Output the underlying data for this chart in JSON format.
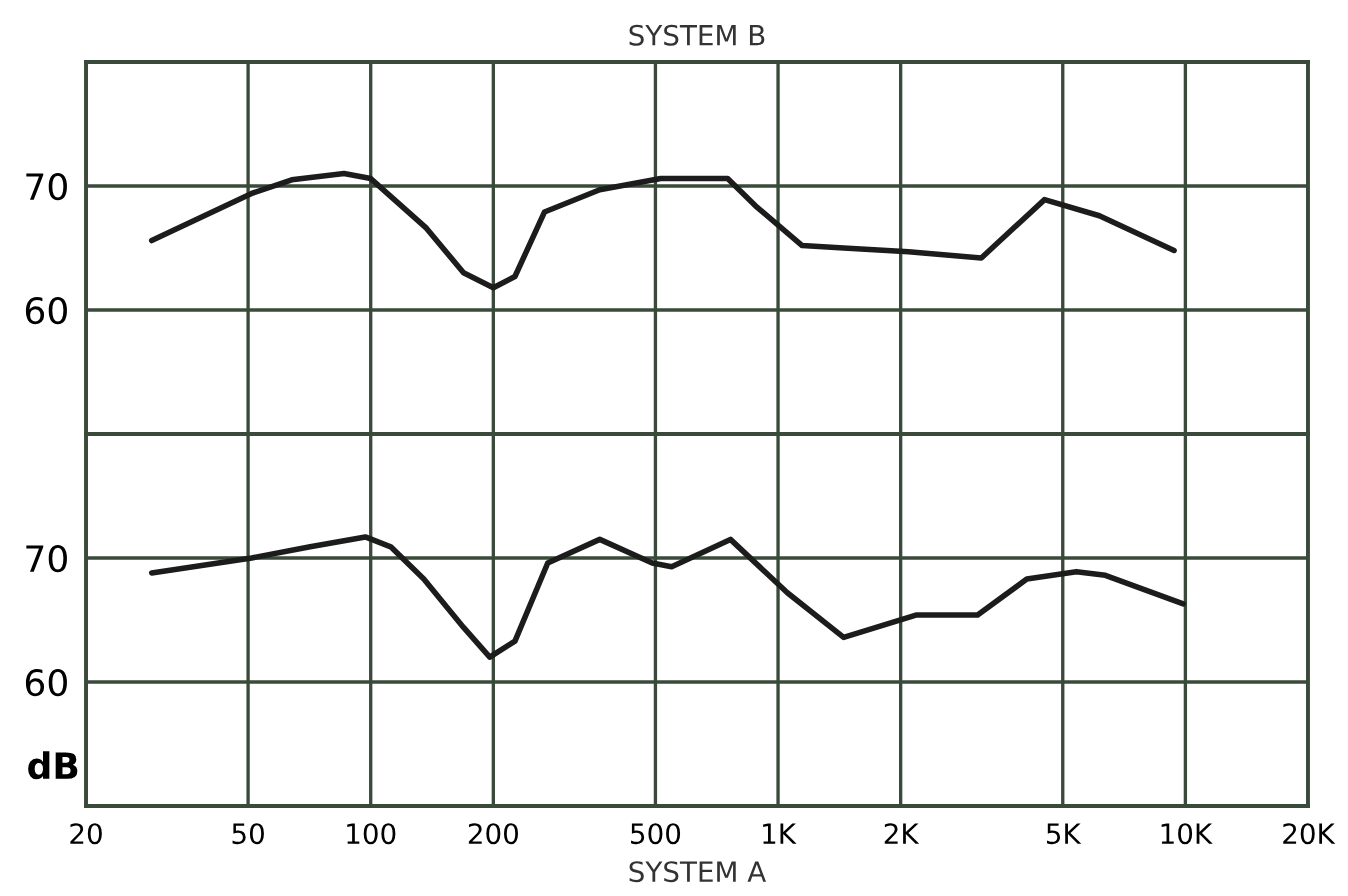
{
  "chart_data": [
    {
      "type": "line",
      "title": "SYSTEM B",
      "log": "x",
      "xlim": [
        20,
        20000
      ],
      "xticks": [
        {
          "value": 20,
          "label": null
        },
        {
          "value": 50,
          "label": null
        },
        {
          "value": 100,
          "label": null
        },
        {
          "value": 200,
          "label": null
        },
        {
          "value": 500,
          "label": null
        },
        {
          "value": 1000,
          "label": null
        },
        {
          "value": 2000,
          "label": null
        },
        {
          "value": 5000,
          "label": null
        },
        {
          "value": 10000,
          "label": null
        },
        {
          "value": 20000,
          "label": null
        }
      ],
      "ylim": [
        50,
        80
      ],
      "yticks": [
        60,
        70
      ],
      "tick_labels": "y",
      "grid": true,
      "marker": "none",
      "line_style": "solid",
      "x": [
        29,
        51,
        64,
        86,
        100,
        137,
        169,
        200,
        226,
        267,
        365,
        515,
        752,
        880,
        1146,
        1449,
        2090,
        3155,
        4510,
        6150,
        9380
      ],
      "series": [
        {
          "color": "#1c1c1c",
          "values": [
            65.6,
            69.4,
            70.5,
            71,
            70.6,
            66.6,
            63,
            61.8,
            62.7,
            67.9,
            69.7,
            70.6,
            70.6,
            68.4,
            65.2,
            65,
            64.7,
            64.2,
            68.9,
            67.6,
            64.8
          ]
        }
      ]
    },
    {
      "type": "line",
      "xlabel": "SYSTEM A",
      "ylabel": "dB",
      "log": "x",
      "xlim": [
        20,
        20000
      ],
      "xticks": [
        20,
        50,
        100,
        200,
        500,
        {
          "value": 1000,
          "label": "1K"
        },
        {
          "value": 2000,
          "label": "2K"
        },
        {
          "value": 5000,
          "label": "5K"
        },
        {
          "value": 10000,
          "label": "10K"
        },
        {
          "value": 20000,
          "label": "20K"
        }
      ],
      "ylim": [
        50,
        80
      ],
      "yticks": [
        60,
        70
      ],
      "grid": true,
      "marker": "none",
      "line_style": "solid",
      "x": [
        29,
        51,
        71,
        97,
        112,
        135,
        169,
        196,
        226,
        272,
        365,
        491,
        548,
        764,
        1054,
        1449,
        2180,
        3090,
        4080,
        5400,
        6360,
        9880
      ],
      "series": [
        {
          "color": "#1c1c1c",
          "values": [
            68.8,
            70,
            70.9,
            71.7,
            70.9,
            68.3,
            64.4,
            62,
            63.3,
            69.6,
            71.5,
            69.6,
            69.3,
            71.5,
            67.2,
            63.6,
            65.4,
            65.4,
            68.3,
            68.9,
            68.6,
            66.3
          ]
        }
      ]
    }
  ]
}
